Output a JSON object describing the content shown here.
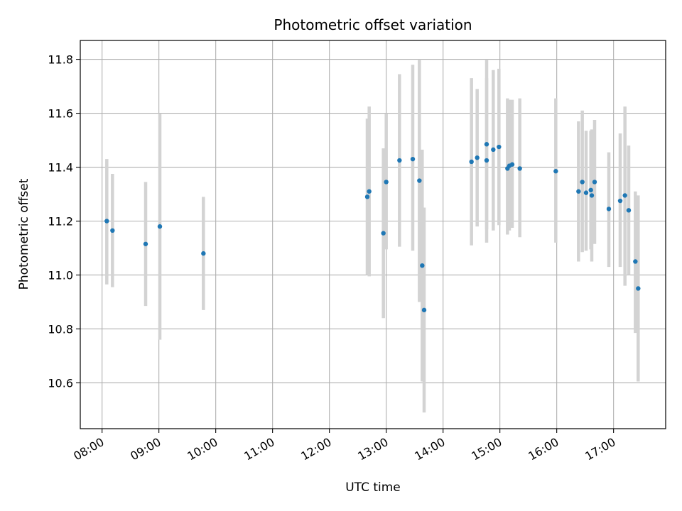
{
  "chart_data": {
    "type": "scatter",
    "title": "Photometric offset variation",
    "xlabel": "UTC time",
    "ylabel": "Photometric offset",
    "x_unit": "UTC",
    "x_ticks": [
      "08:00",
      "09:00",
      "10:00",
      "11:00",
      "12:00",
      "13:00",
      "14:00",
      "15:00",
      "16:00",
      "17:00"
    ],
    "y_ticks": [
      "10.6",
      "10.8",
      "11.0",
      "11.2",
      "11.4",
      "11.6",
      "11.8"
    ],
    "xlim": [
      "07:37",
      "17:55"
    ],
    "ylim": [
      10.43,
      11.87
    ],
    "grid": true,
    "point_color": "#1f77b4",
    "errorbar_color": "#d3d3d3",
    "points": [
      {
        "time": "08:05",
        "y": 11.2,
        "low": 10.965,
        "high": 11.43
      },
      {
        "time": "08:11",
        "y": 11.165,
        "low": 10.955,
        "high": 11.375
      },
      {
        "time": "08:46",
        "y": 11.115,
        "low": 10.885,
        "high": 11.345
      },
      {
        "time": "09:01",
        "y": 11.18,
        "low": 10.76,
        "high": 11.6
      },
      {
        "time": "09:47",
        "y": 11.08,
        "low": 10.87,
        "high": 11.29
      },
      {
        "time": "12:40",
        "y": 11.29,
        "low": 11.0,
        "high": 11.58
      },
      {
        "time": "12:42",
        "y": 11.31,
        "low": 10.995,
        "high": 11.625
      },
      {
        "time": "12:57",
        "y": 11.155,
        "low": 10.84,
        "high": 11.47
      },
      {
        "time": "13:00",
        "y": 11.345,
        "low": 11.095,
        "high": 11.6
      },
      {
        "time": "13:14",
        "y": 11.425,
        "low": 11.105,
        "high": 11.745
      },
      {
        "time": "13:28",
        "y": 11.43,
        "low": 11.09,
        "high": 11.78
      },
      {
        "time": "13:35",
        "y": 11.35,
        "low": 10.9,
        "high": 11.8
      },
      {
        "time": "13:38",
        "y": 11.035,
        "low": 10.605,
        "high": 11.465
      },
      {
        "time": "13:40",
        "y": 10.87,
        "low": 10.49,
        "high": 11.25
      },
      {
        "time": "14:30",
        "y": 11.42,
        "low": 11.11,
        "high": 11.73
      },
      {
        "time": "14:36",
        "y": 11.435,
        "low": 11.18,
        "high": 11.69
      },
      {
        "time": "14:46",
        "y": 11.485,
        "low": 11.17,
        "high": 11.8
      },
      {
        "time": "14:46",
        "y": 11.425,
        "low": 11.12,
        "high": 11.73
      },
      {
        "time": "14:53",
        "y": 11.465,
        "low": 11.165,
        "high": 11.76
      },
      {
        "time": "14:59",
        "y": 11.475,
        "low": 11.185,
        "high": 11.765
      },
      {
        "time": "15:08",
        "y": 11.395,
        "low": 11.15,
        "high": 11.655
      },
      {
        "time": "15:10",
        "y": 11.405,
        "low": 11.165,
        "high": 11.65
      },
      {
        "time": "15:13",
        "y": 11.41,
        "low": 11.175,
        "high": 11.65
      },
      {
        "time": "15:21",
        "y": 11.395,
        "low": 11.14,
        "high": 11.655
      },
      {
        "time": "15:59",
        "y": 11.385,
        "low": 11.12,
        "high": 11.655
      },
      {
        "time": "16:23",
        "y": 11.31,
        "low": 11.05,
        "high": 11.57
      },
      {
        "time": "16:27",
        "y": 11.345,
        "low": 11.085,
        "high": 11.61
      },
      {
        "time": "16:31",
        "y": 11.305,
        "low": 11.09,
        "high": 11.535
      },
      {
        "time": "16:36",
        "y": 11.315,
        "low": 11.095,
        "high": 11.535
      },
      {
        "time": "16:37",
        "y": 11.295,
        "low": 11.05,
        "high": 11.54
      },
      {
        "time": "16:40",
        "y": 11.345,
        "low": 11.115,
        "high": 11.575
      },
      {
        "time": "16:55",
        "y": 11.245,
        "low": 11.03,
        "high": 11.455
      },
      {
        "time": "17:07",
        "y": 11.275,
        "low": 11.03,
        "high": 11.525
      },
      {
        "time": "17:12",
        "y": 11.295,
        "low": 10.96,
        "high": 11.625
      },
      {
        "time": "17:16",
        "y": 11.24,
        "low": 11.0,
        "high": 11.48
      },
      {
        "time": "17:23",
        "y": 11.05,
        "low": 10.785,
        "high": 11.31
      },
      {
        "time": "17:26",
        "y": 10.95,
        "low": 10.605,
        "high": 11.295
      }
    ]
  }
}
